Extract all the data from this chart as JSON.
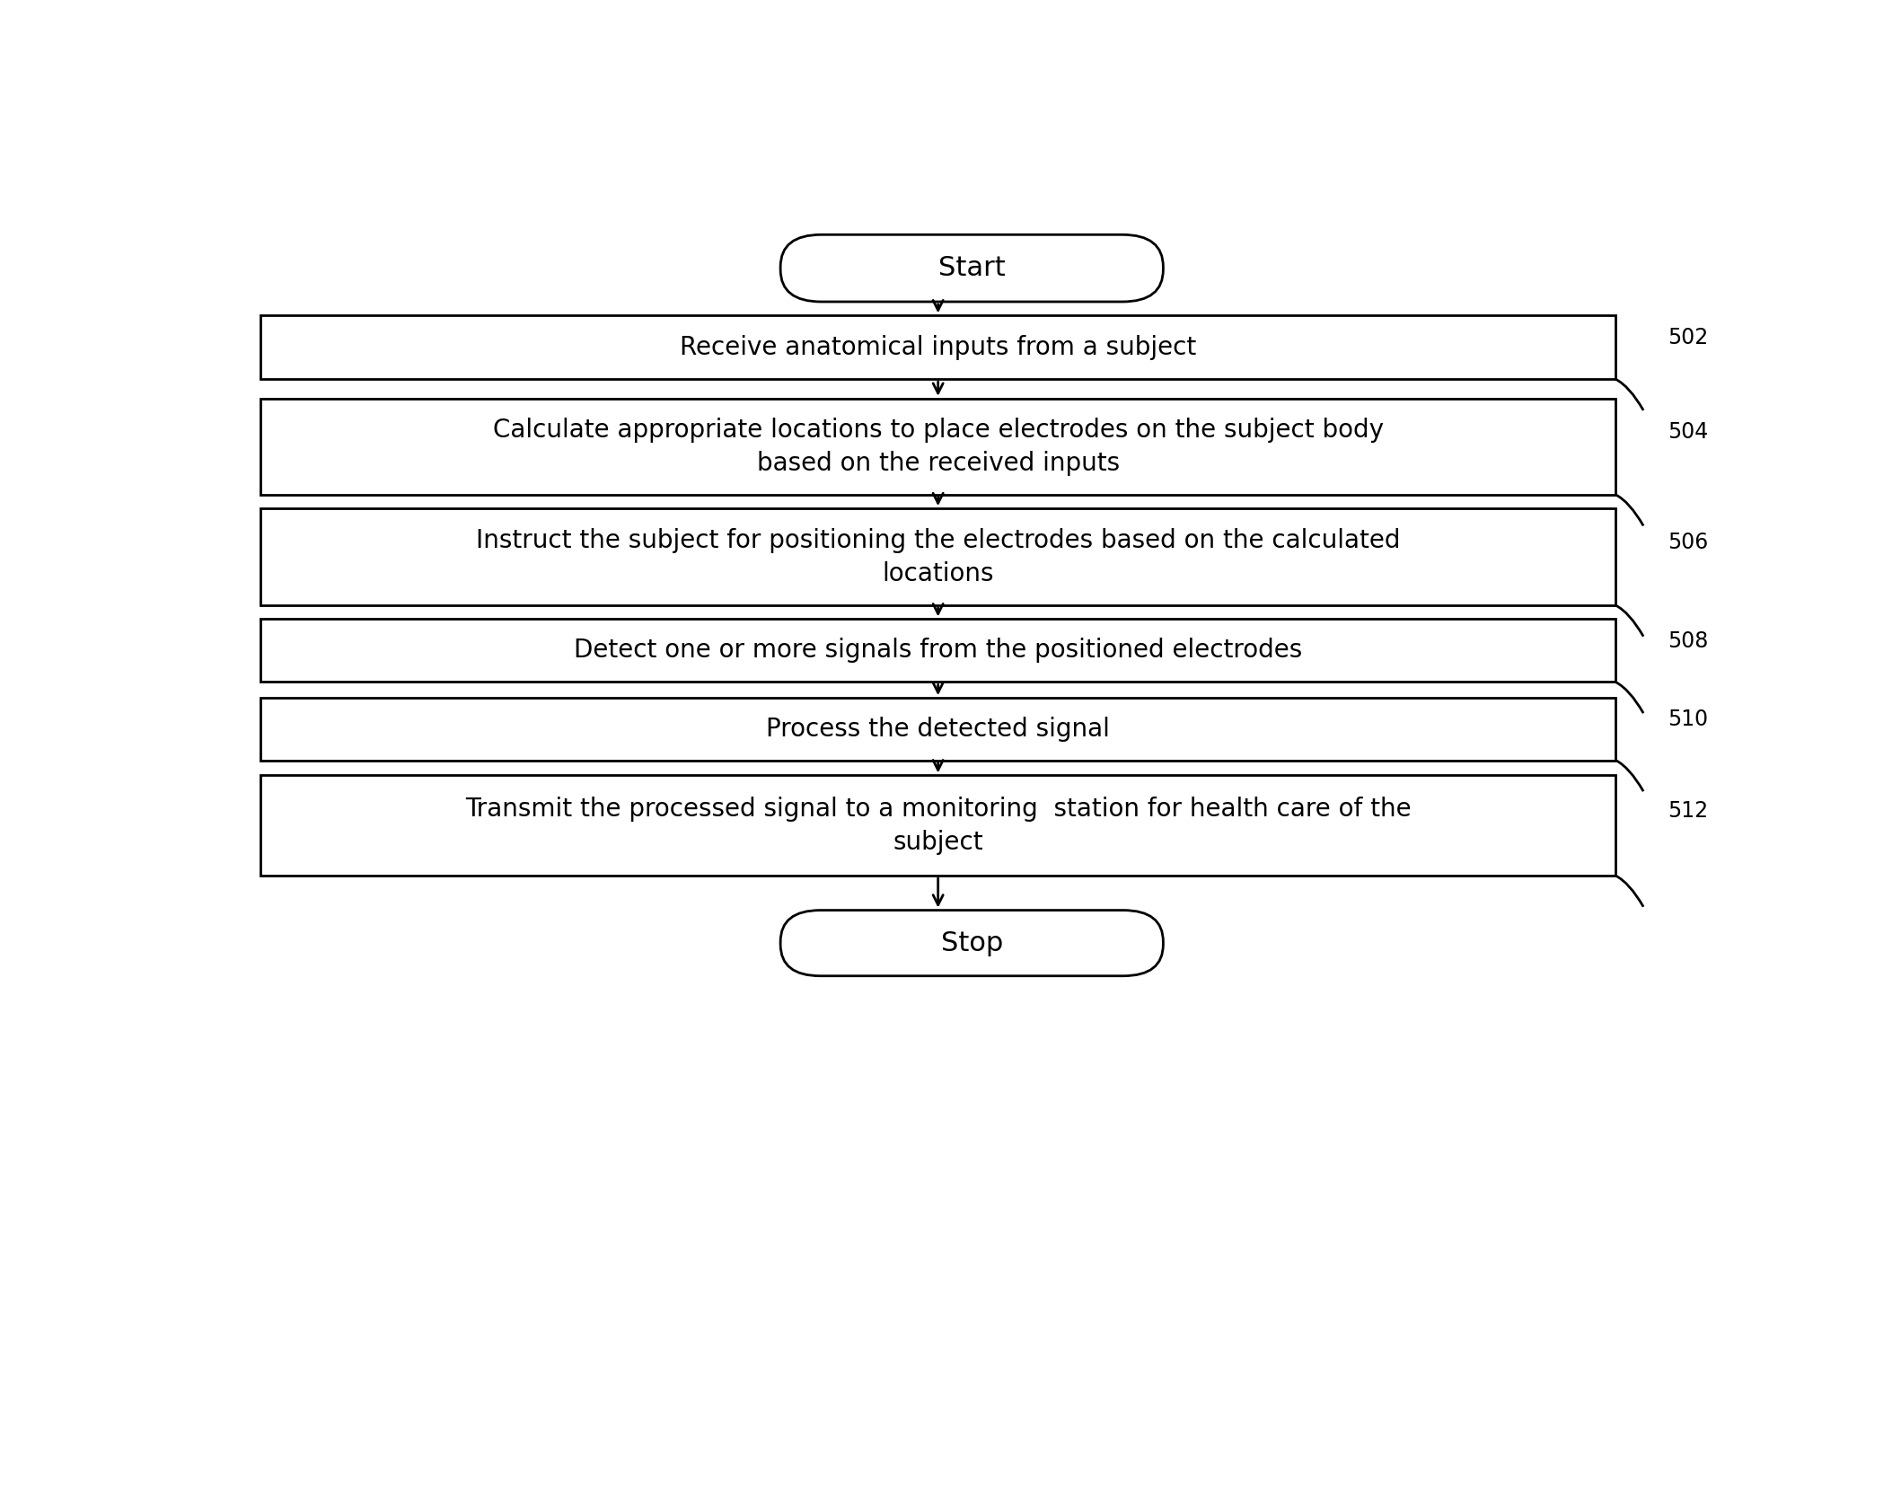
{
  "background_color": "#ffffff",
  "fig_width": 21.17,
  "fig_height": 16.77,
  "start_label": "Start",
  "stop_label": "Stop",
  "boxes": [
    {
      "label": "Receive anatomical inputs from a subject",
      "tag": "502",
      "two_line": false
    },
    {
      "label": "Calculate appropriate locations to place electrodes on the subject body\nbased on the received inputs",
      "tag": "504",
      "two_line": true
    },
    {
      "label": "Instruct the subject for positioning the electrodes based on the calculated\nlocations",
      "tag": "506",
      "two_line": true
    },
    {
      "label": "Detect one or more signals from the positioned electrodes",
      "tag": "508",
      "two_line": false
    },
    {
      "label": "Process the detected signal",
      "tag": "510",
      "two_line": false
    },
    {
      "label": "Transmit the processed signal to a monitoring  station for health care of the\nsubject",
      "tag": "512",
      "two_line": true
    }
  ],
  "box_color": "#ffffff",
  "box_edge_color": "#000000",
  "text_color": "#000000",
  "arrow_color": "#000000",
  "tag_color": "#000000",
  "font_size": 20,
  "tag_font_size": 17,
  "terminal_font_size": 22,
  "line_width": 2.0
}
